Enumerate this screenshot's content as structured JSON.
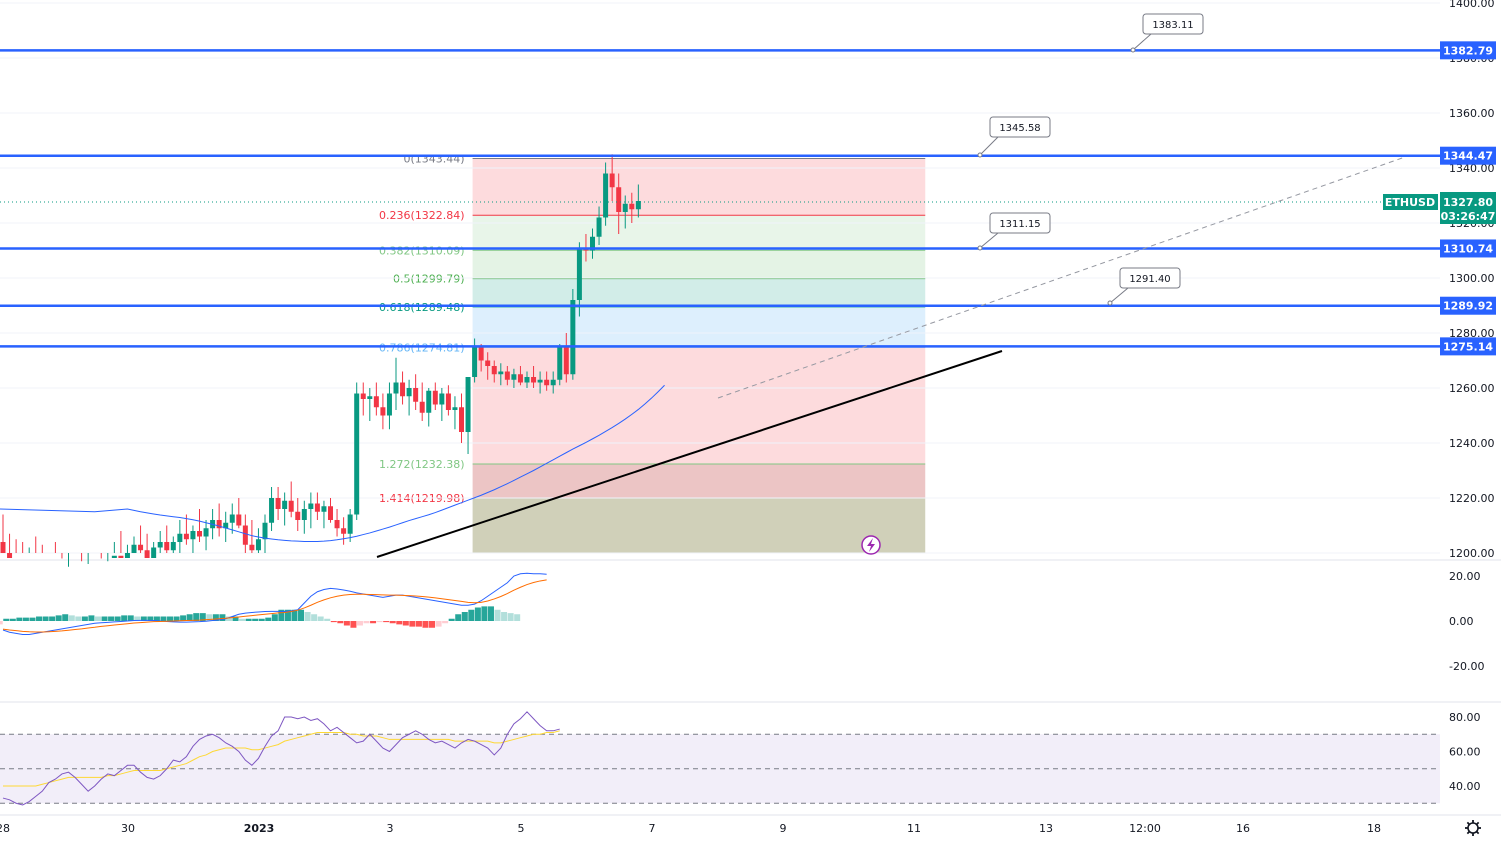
{
  "chart_data": {
    "type": "candlestick",
    "symbol": "ETHUSD",
    "last_price": "1327.80",
    "countdown": "03:26:47",
    "y_axis": {
      "range": [
        1200,
        1400
      ],
      "ticks": [
        "1200.00",
        "1220.00",
        "1240.00",
        "1260.00",
        "1280.00",
        "1300.00",
        "1320.00",
        "1340.00",
        "1360.00",
        "1380.00",
        "1400.00"
      ]
    },
    "x_axis": {
      "ticks": [
        {
          "label": "28",
          "pos": 0
        },
        {
          "label": "30",
          "pos": 2
        },
        {
          "label": "2023",
          "pos": 4
        },
        {
          "label": "3",
          "pos": 6
        },
        {
          "label": "5",
          "pos": 8
        },
        {
          "label": "7",
          "pos": 10
        },
        {
          "label": "9",
          "pos": 12
        },
        {
          "label": "11",
          "pos": 14
        },
        {
          "label": "13",
          "pos": 16
        },
        {
          "label": "12:00",
          "pos": 17.5
        },
        {
          "label": "16",
          "pos": 19
        },
        {
          "label": "18",
          "pos": 21
        }
      ]
    },
    "candles": [
      [
        1212,
        1215,
        1195,
        1205
      ],
      [
        1205,
        1218,
        1198,
        1200
      ],
      [
        1200,
        1210,
        1190,
        1195
      ],
      [
        1195,
        1208,
        1192,
        1202
      ],
      [
        1202,
        1212,
        1195,
        1198
      ],
      [
        1198,
        1210,
        1192,
        1204
      ],
      [
        1204,
        1214,
        1198,
        1200
      ],
      [
        1200,
        1207,
        1190,
        1198
      ],
      [
        1198,
        1205,
        1192,
        1196
      ],
      [
        1196,
        1204,
        1190,
        1194
      ],
      [
        1194,
        1202,
        1188,
        1197
      ],
      [
        1197,
        1206,
        1192,
        1195
      ],
      [
        1195,
        1203,
        1188,
        1193
      ],
      [
        1193,
        1200,
        1186,
        1196
      ],
      [
        1196,
        1204,
        1190,
        1192
      ],
      [
        1192,
        1198,
        1185,
        1189
      ],
      [
        1189,
        1195,
        1182,
        1192
      ],
      [
        1192,
        1200,
        1188,
        1190
      ],
      [
        1190,
        1197,
        1184,
        1188
      ],
      [
        1188,
        1196,
        1183,
        1193
      ],
      [
        1193,
        1200,
        1189,
        1191
      ],
      [
        1191,
        1198,
        1186,
        1190
      ],
      [
        1190,
        1197,
        1185,
        1194
      ],
      [
        1194,
        1204,
        1190,
        1199
      ],
      [
        1199,
        1208,
        1195,
        1197
      ],
      [
        1197,
        1203,
        1192,
        1200
      ],
      [
        1200,
        1206,
        1195,
        1203
      ],
      [
        1203,
        1210,
        1198,
        1201
      ],
      [
        1201,
        1207,
        1196,
        1198
      ],
      [
        1198,
        1204,
        1193,
        1202
      ],
      [
        1202,
        1208,
        1198,
        1204
      ],
      [
        1204,
        1210,
        1199,
        1201
      ],
      [
        1201,
        1206,
        1196,
        1204
      ],
      [
        1204,
        1212,
        1200,
        1207
      ],
      [
        1207,
        1214,
        1203,
        1205
      ],
      [
        1205,
        1210,
        1200,
        1208
      ],
      [
        1208,
        1216,
        1204,
        1206
      ],
      [
        1206,
        1212,
        1201,
        1209
      ],
      [
        1209,
        1216,
        1205,
        1212
      ],
      [
        1212,
        1218,
        1206,
        1209
      ],
      [
        1209,
        1215,
        1204,
        1211
      ],
      [
        1211,
        1218,
        1207,
        1214
      ],
      [
        1214,
        1220,
        1209,
        1210
      ],
      [
        1210,
        1214,
        1200,
        1203
      ],
      [
        1203,
        1212,
        1198,
        1201
      ],
      [
        1201,
        1209,
        1196,
        1205
      ],
      [
        1205,
        1214,
        1200,
        1211
      ],
      [
        1211,
        1224,
        1208,
        1220
      ],
      [
        1220,
        1224,
        1212,
        1216
      ],
      [
        1216,
        1222,
        1210,
        1219
      ],
      [
        1219,
        1226,
        1213,
        1215
      ],
      [
        1215,
        1220,
        1208,
        1212
      ],
      [
        1212,
        1219,
        1207,
        1216
      ],
      [
        1216,
        1222,
        1209,
        1218
      ],
      [
        1218,
        1222,
        1212,
        1215
      ],
      [
        1215,
        1219,
        1209,
        1217
      ],
      [
        1217,
        1220,
        1211,
        1212
      ],
      [
        1212,
        1216,
        1206,
        1209
      ],
      [
        1209,
        1213,
        1203,
        1207
      ],
      [
        1207,
        1216,
        1204,
        1214
      ],
      [
        1214,
        1262,
        1212,
        1258
      ],
      [
        1258,
        1262,
        1250,
        1256
      ],
      [
        1256,
        1260,
        1248,
        1257
      ],
      [
        1257,
        1262,
        1250,
        1253
      ],
      [
        1253,
        1258,
        1245,
        1250
      ],
      [
        1250,
        1262,
        1245,
        1258
      ],
      [
        1258,
        1271,
        1252,
        1262
      ],
      [
        1262,
        1266,
        1254,
        1257
      ],
      [
        1257,
        1263,
        1250,
        1260
      ],
      [
        1260,
        1265,
        1252,
        1255
      ],
      [
        1255,
        1262,
        1248,
        1251
      ],
      [
        1251,
        1260,
        1246,
        1259
      ],
      [
        1259,
        1262,
        1252,
        1254
      ],
      [
        1254,
        1260,
        1248,
        1258
      ],
      [
        1258,
        1261,
        1250,
        1252
      ],
      [
        1252,
        1257,
        1245,
        1253
      ],
      [
        1253,
        1258,
        1240,
        1244
      ],
      [
        1244,
        1264,
        1236,
        1264
      ],
      [
        1264,
        1278,
        1262,
        1275
      ],
      [
        1275,
        1276,
        1266,
        1270
      ],
      [
        1270,
        1273,
        1263,
        1268
      ],
      [
        1268,
        1270,
        1262,
        1265
      ],
      [
        1265,
        1269,
        1261,
        1266
      ],
      [
        1266,
        1268,
        1261,
        1263
      ],
      [
        1263,
        1267,
        1260,
        1265
      ],
      [
        1265,
        1268,
        1261,
        1262
      ],
      [
        1262,
        1266,
        1260,
        1264
      ],
      [
        1264,
        1268,
        1260,
        1262
      ],
      [
        1262,
        1266,
        1258,
        1263
      ],
      [
        1263,
        1266,
        1259,
        1261
      ],
      [
        1261,
        1266,
        1258,
        1263
      ],
      [
        1263,
        1276,
        1261,
        1275
      ],
      [
        1275,
        1280,
        1262,
        1265
      ],
      [
        1265,
        1296,
        1263,
        1292
      ],
      [
        1292,
        1313,
        1286,
        1311
      ],
      [
        1311,
        1316,
        1306,
        1310
      ],
      [
        1310,
        1318,
        1307,
        1315
      ],
      [
        1315,
        1326,
        1312,
        1322
      ],
      [
        1322,
        1342,
        1319,
        1338
      ],
      [
        1338,
        1345,
        1328,
        1333
      ],
      [
        1333,
        1338,
        1316,
        1324
      ],
      [
        1324,
        1330,
        1318,
        1327
      ],
      [
        1327,
        1331,
        1320,
        1325
      ],
      [
        1325,
        1334,
        1322,
        1328
      ]
    ],
    "ma_line": [
      1216,
      1215.5,
      1215,
      1214.6,
      1214.2,
      1213.8,
      1213.5,
      1213.2,
      1212.9,
      1212.5,
      1212.1,
      1211.6,
      1211,
      1210.4,
      1209.8,
      1209.1,
      1208.4,
      1207.7,
      1207,
      1206.3,
      1205.8,
      1205.4,
      1205.1,
      1204.8,
      1204.6,
      1204.4,
      1204.3,
      1204.2,
      1204.2,
      1204.2,
      1204.3,
      1204.5,
      1204.8,
      1205.2,
      1205.6,
      1206.1,
      1206.7,
      1207.3,
      1208,
      1208.7,
      1209.4,
      1210.2,
      1211,
      1211.8,
      1212.5,
      1213.2,
      1213.9,
      1214.7,
      1215.6,
      1216.5,
      1217.4,
      1218.3,
      1219.2,
      1220.1,
      1221,
      1222,
      1223,
      1224.1,
      1225.2,
      1226.4,
      1227.6,
      1228.8,
      1230,
      1231.3,
      1232.6,
      1233.9,
      1235.2,
      1236.5,
      1237.8,
      1239,
      1240.2,
      1241.5,
      1242.8,
      1244.2,
      1245.6,
      1247.1,
      1248.7,
      1250.4,
      1252.2,
      1254.2,
      1256.3,
      1258.6,
      1261
    ],
    "ma_start_index": 0,
    "trend_line": {
      "from": [
        38,
        1201
      ],
      "to": [
        100,
        1275
      ]
    },
    "dashed_line": {
      "from": [
        72,
        1257
      ],
      "to": [
        140,
        1344
      ]
    },
    "horizontal_levels": [
      {
        "value": "1382.79",
        "price": 1382.79
      },
      {
        "value": "1344.47",
        "price": 1344.47
      },
      {
        "value": "1310.74",
        "price": 1310.74
      },
      {
        "value": "1289.92",
        "price": 1289.92
      },
      {
        "value": "1275.14",
        "price": 1275.14
      }
    ],
    "callouts": [
      {
        "text": "1383.11",
        "price": 1383.11,
        "at": 113.5
      },
      {
        "text": "1345.58",
        "price": 1345.58,
        "at": 98
      },
      {
        "text": "1311.15",
        "price": 1311.15,
        "at": 98
      },
      {
        "text": "1291.40",
        "price": 1291.4,
        "at": 111
      }
    ],
    "fibonacci": {
      "x_start": 72,
      "x_end": 140.8,
      "levels": [
        {
          "label": "0(1343.44)",
          "price": 1343.44,
          "color": "#787b86"
        },
        {
          "label": "0.236(1322.84)",
          "price": 1322.84,
          "color": "#f23645"
        },
        {
          "label": "0.382(1310.09)",
          "price": 1310.09,
          "color": "#81c784"
        },
        {
          "label": "0.5(1299.79)",
          "price": 1299.79,
          "color": "#4caf50"
        },
        {
          "label": "0.618(1289.48)",
          "price": 1289.48,
          "color": "#089981"
        },
        {
          "label": "0.786(1274.81)",
          "price": 1274.81,
          "color": "#64b5f6"
        },
        {
          "label": "1.272(1232.38)",
          "price": 1232.38,
          "color": "#81c784"
        },
        {
          "label": "1.414(1219.98)",
          "price": 1219.98,
          "color": "#f23645"
        }
      ]
    },
    "macd": {
      "ticks": [
        "20.00",
        "0.00",
        "-20.00"
      ],
      "range": [
        -30,
        25
      ],
      "macd_line": [
        -2,
        -3,
        -4,
        -5,
        -5.5,
        -6,
        -6,
        -5.5,
        -5,
        -4.5,
        -4,
        -3.5,
        -3,
        -2.5,
        -2,
        -1.5,
        -1,
        -0.8,
        -0.6,
        -0.4,
        -0.2,
        0,
        0.2,
        0.3,
        0.3,
        0.2,
        0,
        -0.2,
        -0.4,
        -0.5,
        -0.5,
        -0.4,
        -0.3,
        -0.1,
        0.2,
        0.5,
        1,
        2,
        3,
        3.5,
        3.8,
        4,
        4.2,
        4.3,
        4.3,
        4.2,
        4.5,
        5,
        8,
        11,
        13,
        14,
        14.5,
        14.2,
        13.8,
        13.2,
        12.5,
        12,
        11.5,
        11,
        10.5,
        11,
        11.5,
        11.5,
        11,
        10.5,
        10,
        9.5,
        9,
        8.5,
        8,
        7.5,
        7,
        7,
        7.5,
        9,
        11,
        13,
        15,
        17,
        20,
        21,
        21.2,
        21,
        21,
        20.8
      ],
      "signal_line": [
        -3,
        -3.3,
        -3.6,
        -4,
        -4.3,
        -4.6,
        -4.8,
        -4.9,
        -4.9,
        -4.8,
        -4.6,
        -4.4,
        -4.1,
        -3.8,
        -3.5,
        -3.1,
        -2.8,
        -2.4,
        -2.1,
        -1.8,
        -1.5,
        -1.2,
        -0.9,
        -0.7,
        -0.5,
        -0.3,
        -0.2,
        -0.1,
        0,
        0.1,
        0.2,
        0.3,
        0.4,
        0.6,
        0.8,
        1,
        1.2,
        1.5,
        1.8,
        2.1,
        2.4,
        2.7,
        3,
        3.3,
        3.6,
        3.8,
        4.2,
        4.8,
        5.8,
        7,
        8.3,
        9.4,
        10.3,
        11,
        11.5,
        11.8,
        11.9,
        11.9,
        11.8,
        11.7,
        11.6,
        11.5,
        11.5,
        11.4,
        11.3,
        11.1,
        10.9,
        10.6,
        10.3,
        9.9,
        9.5,
        9.1,
        8.7,
        8.3,
        8.1,
        8.3,
        8.9,
        9.8,
        10.9,
        12.2,
        13.7,
        15,
        16.2,
        17.1,
        17.8,
        18.3
      ],
      "histogram": [
        -4,
        -6,
        -8,
        -7,
        -5,
        -3,
        -1.5,
        1,
        1,
        1.5,
        1.5,
        1.5,
        2,
        2,
        2,
        2.5,
        3,
        2.5,
        2,
        2,
        2.5,
        2,
        2,
        2,
        2,
        2.5,
        2.5,
        2,
        2,
        2,
        2,
        2,
        2,
        2,
        2.5,
        3,
        3.5,
        3.5,
        3,
        3,
        3,
        2,
        2,
        1,
        1,
        1,
        1,
        1.5,
        3,
        5,
        5,
        5,
        5,
        4,
        3,
        2,
        1,
        -0.5,
        -1,
        -2,
        -3,
        -2,
        -1,
        -1,
        -0.5,
        -0.5,
        -1,
        -1.5,
        -2,
        -2.5,
        -2.5,
        -3,
        -3,
        -2.5,
        -1,
        1,
        3,
        4,
        5,
        6,
        6.5,
        6.5,
        5,
        4,
        3.5,
        3
      ]
    },
    "rsi": {
      "ticks": [
        "80.00",
        "60.00",
        "40.00"
      ],
      "range": [
        28,
        88
      ],
      "bands": [
        70,
        50,
        30
      ],
      "rsi_line": [
        50,
        46,
        42,
        38,
        36,
        33,
        32,
        30,
        29,
        31,
        34,
        37,
        42,
        44,
        47,
        48,
        45,
        41,
        37,
        40,
        44,
        47,
        46,
        49,
        52,
        52,
        48,
        45,
        44,
        46,
        50,
        55,
        54,
        57,
        63,
        67,
        69,
        70,
        68,
        65,
        63,
        60,
        55,
        52,
        56,
        63,
        69,
        72,
        80,
        80,
        79,
        80,
        78,
        79,
        76,
        72,
        74,
        71,
        68,
        65,
        66,
        70,
        66,
        62,
        60,
        64,
        68,
        70,
        72,
        70,
        67,
        65,
        66,
        64,
        62,
        65,
        67,
        66,
        64,
        62,
        58,
        62,
        70,
        76,
        79,
        83,
        79,
        75,
        72,
        72,
        73
      ],
      "rsi_ma": [
        48,
        46,
        44,
        42,
        41,
        40,
        40,
        40,
        40,
        40,
        40,
        41,
        42,
        43,
        44,
        45,
        45,
        45,
        45,
        45,
        45,
        46,
        46,
        47,
        48,
        49,
        49,
        49,
        49,
        49,
        50,
        51,
        52,
        53,
        55,
        57,
        58,
        60,
        61,
        62,
        62,
        62,
        62,
        61,
        61,
        62,
        63,
        64,
        66,
        67,
        68,
        69,
        70,
        71,
        71,
        71,
        71,
        71,
        70,
        70,
        69,
        69,
        69,
        68,
        67,
        67,
        67,
        67,
        67,
        67,
        67,
        67,
        67,
        67,
        66,
        66,
        66,
        66,
        66,
        66,
        65,
        65,
        66,
        67,
        68,
        69,
        70,
        70,
        71,
        71,
        72
      ]
    },
    "price_badges": [
      {
        "text": "1382.79",
        "price": 1382.79
      },
      {
        "text": "1344.47",
        "price": 1344.47
      },
      {
        "text": "1310.74",
        "price": 1310.74
      },
      {
        "text": "1289.92",
        "price": 1289.92
      },
      {
        "text": "1275.14",
        "price": 1275.14
      }
    ],
    "colors": {
      "up": "#089981",
      "down": "#f23645",
      "level": "#2962ff",
      "ma": "#2962ff",
      "macd": "#2962ff",
      "signal": "#ff6d00",
      "rsi": "#7e57c2",
      "rsi_ma": "#fdd835"
    }
  }
}
